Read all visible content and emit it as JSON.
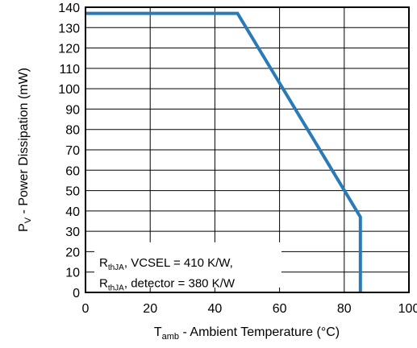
{
  "chart_data": {
    "type": "line",
    "title": "",
    "xlabel": {
      "main": "T",
      "sub": "amb",
      "rest": " - Ambient Temperature (°C)"
    },
    "ylabel": {
      "main": "P",
      "sub": "V",
      "rest": " - Power Dissipation (mW)"
    },
    "xlim": [
      0,
      100
    ],
    "ylim": [
      0,
      140
    ],
    "x_ticks": [
      0,
      20,
      40,
      60,
      80,
      100
    ],
    "x_tick_labels": [
      "0",
      "20",
      "40",
      "60",
      "80",
      "100"
    ],
    "y_ticks": [
      0,
      10,
      20,
      30,
      40,
      50,
      60,
      70,
      80,
      90,
      100,
      110,
      120,
      130,
      140
    ],
    "y_tick_labels": [
      "0",
      "10",
      "20",
      "30",
      "40",
      "50",
      "60",
      "70",
      "80",
      "90",
      "100",
      "110",
      "120",
      "130",
      "140"
    ],
    "grid": true,
    "series": [
      {
        "color": "#2a7ab8",
        "x": [
          0,
          47,
          85,
          85
        ],
        "y": [
          137,
          137,
          37,
          0
        ]
      }
    ],
    "annotations": [
      {
        "main": "R",
        "sub": "thJA",
        "rest": ", VCSEL = 410 K/W,"
      },
      {
        "main": "R",
        "sub": "thJA",
        "rest": ", detector = 380 K/W"
      }
    ]
  }
}
